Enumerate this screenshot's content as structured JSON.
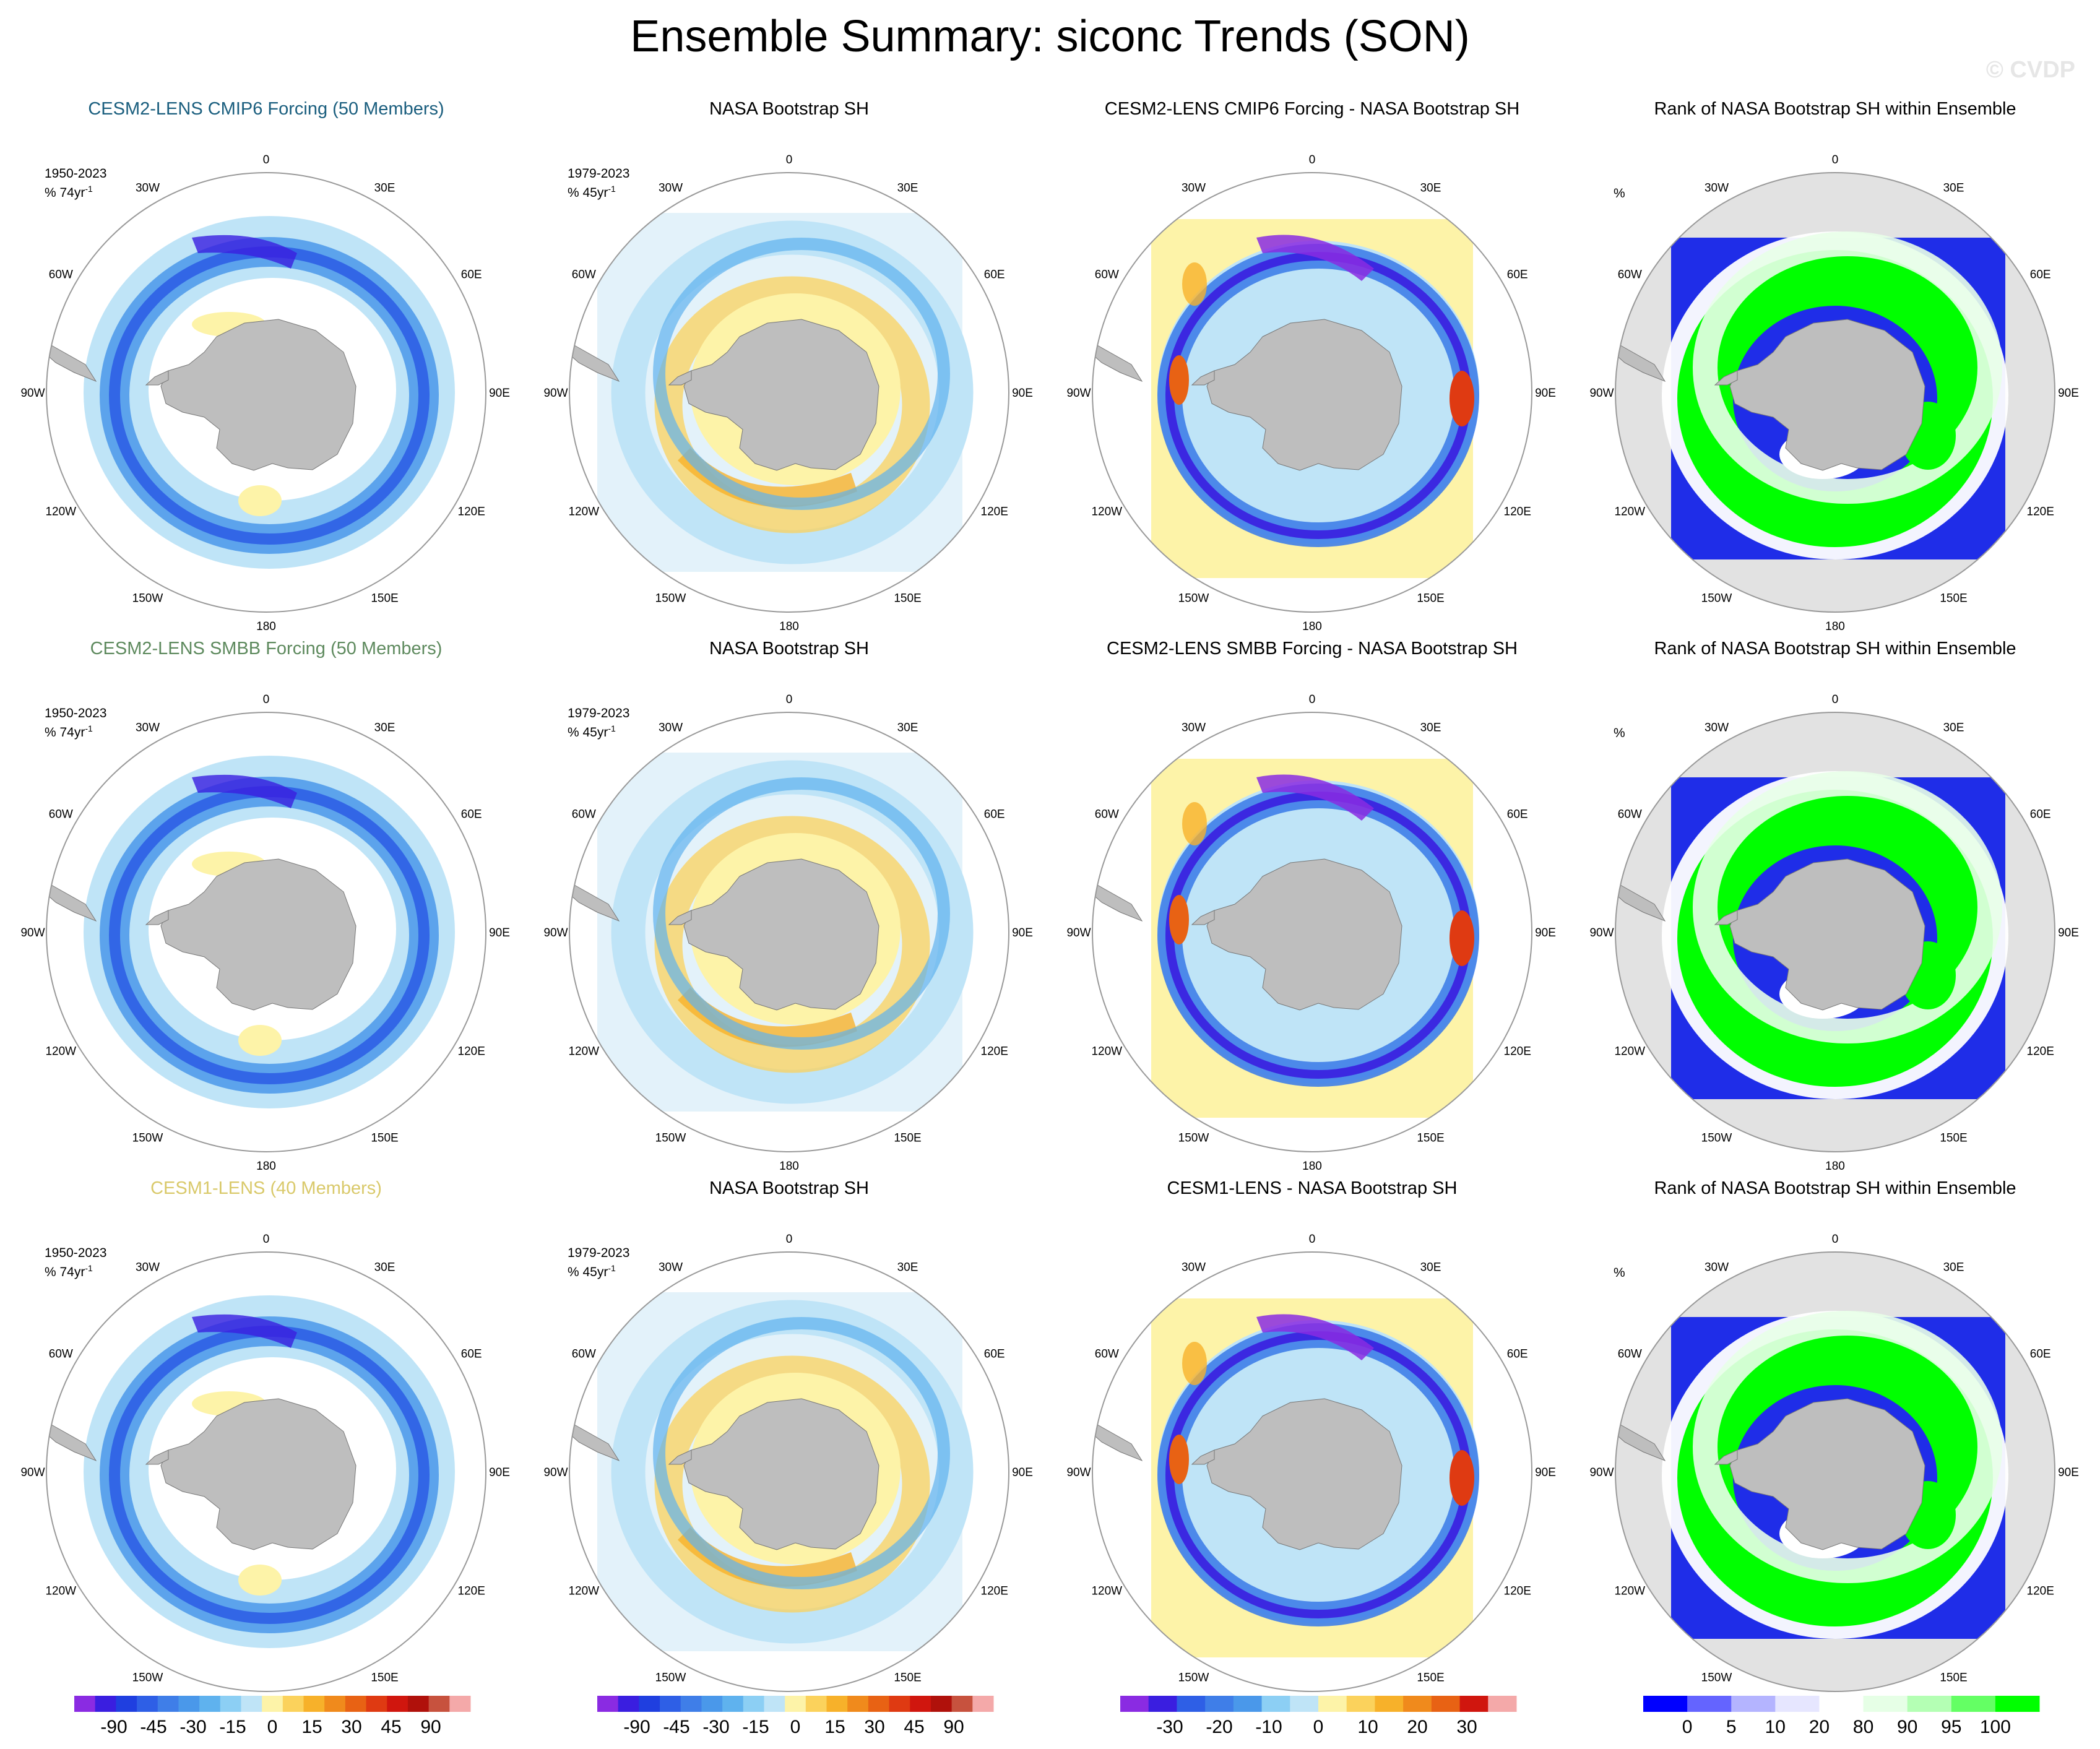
{
  "title": "Ensemble Summary: siconc Trends (SON)",
  "watermark": "© CVDP",
  "colors": {
    "land": "#bebebe",
    "rank_background": "#e2e2e2",
    "row_title_1": "#1a5e7e",
    "row_title_2": "#5e8a5e",
    "row_title_3": "#d9c96a"
  },
  "longitude_labels": [
    "0",
    "30E",
    "60E",
    "90E",
    "120E",
    "150E",
    "180",
    "150W",
    "120W",
    "90W",
    "60W",
    "30W"
  ],
  "rows": [
    {
      "panels": [
        {
          "title": "CESM2-LENS CMIP6 Forcing (50 Members)",
          "ann_period": "1950-2023",
          "ann_units": "% 74yr",
          "ann_sup": "-1",
          "kind": "model"
        },
        {
          "title": "NASA Bootstrap SH",
          "ann_period": "1979-2023",
          "ann_units": "% 45yr",
          "ann_sup": "-1",
          "kind": "obs"
        },
        {
          "title": "CESM2-LENS CMIP6 Forcing - NASA Bootstrap SH",
          "ann_period": "",
          "ann_units": "",
          "ann_sup": "",
          "kind": "diff"
        },
        {
          "title": "Rank of NASA Bootstrap SH within Ensemble",
          "ann_period": "",
          "ann_units": "%",
          "ann_sup": "",
          "kind": "rank"
        }
      ]
    },
    {
      "panels": [
        {
          "title": "CESM2-LENS SMBB Forcing (50 Members)",
          "ann_period": "1950-2023",
          "ann_units": "% 74yr",
          "ann_sup": "-1",
          "kind": "model"
        },
        {
          "title": "NASA Bootstrap SH",
          "ann_period": "1979-2023",
          "ann_units": "% 45yr",
          "ann_sup": "-1",
          "kind": "obs"
        },
        {
          "title": "CESM2-LENS SMBB Forcing - NASA Bootstrap SH",
          "ann_period": "",
          "ann_units": "",
          "ann_sup": "",
          "kind": "diff"
        },
        {
          "title": "Rank of NASA Bootstrap SH within Ensemble",
          "ann_period": "",
          "ann_units": "%",
          "ann_sup": "",
          "kind": "rank"
        }
      ]
    },
    {
      "panels": [
        {
          "title": "CESM1-LENS (40 Members)",
          "ann_period": "1950-2023",
          "ann_units": "% 74yr",
          "ann_sup": "-1",
          "kind": "model"
        },
        {
          "title": "NASA Bootstrap SH",
          "ann_period": "1979-2023",
          "ann_units": "% 45yr",
          "ann_sup": "-1",
          "kind": "obs"
        },
        {
          "title": "CESM1-LENS - NASA Bootstrap SH",
          "ann_period": "",
          "ann_units": "",
          "ann_sup": "",
          "kind": "diff"
        },
        {
          "title": "Rank of NASA Bootstrap SH within Ensemble",
          "ann_period": "",
          "ann_units": "%",
          "ann_sup": "",
          "kind": "rank"
        }
      ]
    }
  ],
  "colorbars": [
    {
      "labels": [
        "-90",
        "-45",
        "-30",
        "-15",
        "0",
        "15",
        "30",
        "45",
        "90"
      ],
      "colors": [
        "#8a2be2",
        "#3a1ee0",
        "#1f3fe0",
        "#2e5fe6",
        "#3f7ee8",
        "#4a98ea",
        "#5fb2ee",
        "#8ccff4",
        "#bfe4f7",
        "#fdf3a8",
        "#fbd25c",
        "#f7b12a",
        "#f08a1c",
        "#e86214",
        "#df3a12",
        "#d0160e",
        "#b0110b",
        "#c7523e",
        "#f4a9a9"
      ]
    },
    {
      "labels": [
        "-90",
        "-45",
        "-30",
        "-15",
        "0",
        "15",
        "30",
        "45",
        "90"
      ],
      "colors": [
        "#8a2be2",
        "#3a1ee0",
        "#1f3fe0",
        "#2e5fe6",
        "#3f7ee8",
        "#4a98ea",
        "#5fb2ee",
        "#8ccff4",
        "#bfe4f7",
        "#fdf3a8",
        "#fbd25c",
        "#f7b12a",
        "#f08a1c",
        "#e86214",
        "#df3a12",
        "#d0160e",
        "#b0110b",
        "#c7523e",
        "#f4a9a9"
      ]
    },
    {
      "labels": [
        "-30",
        "-20",
        "-10",
        "0",
        "10",
        "20",
        "30"
      ],
      "colors": [
        "#8a2be2",
        "#3a1ee0",
        "#2e5fe6",
        "#3f7ee8",
        "#4a98ea",
        "#8ccff4",
        "#bfe4f7",
        "#fdf3a8",
        "#fbd25c",
        "#f7b12a",
        "#f08a1c",
        "#e86214",
        "#d0160e",
        "#f4a9a9"
      ]
    },
    {
      "labels": [
        "0",
        "5",
        "10",
        "20",
        "80",
        "90",
        "95",
        "100"
      ],
      "colors": [
        "#0000ff",
        "#6464ff",
        "#b4b4ff",
        "#e6e6ff",
        "#ffffff",
        "#e6ffe6",
        "#b4ffb4",
        "#64ff64",
        "#00ff00"
      ]
    }
  ]
}
